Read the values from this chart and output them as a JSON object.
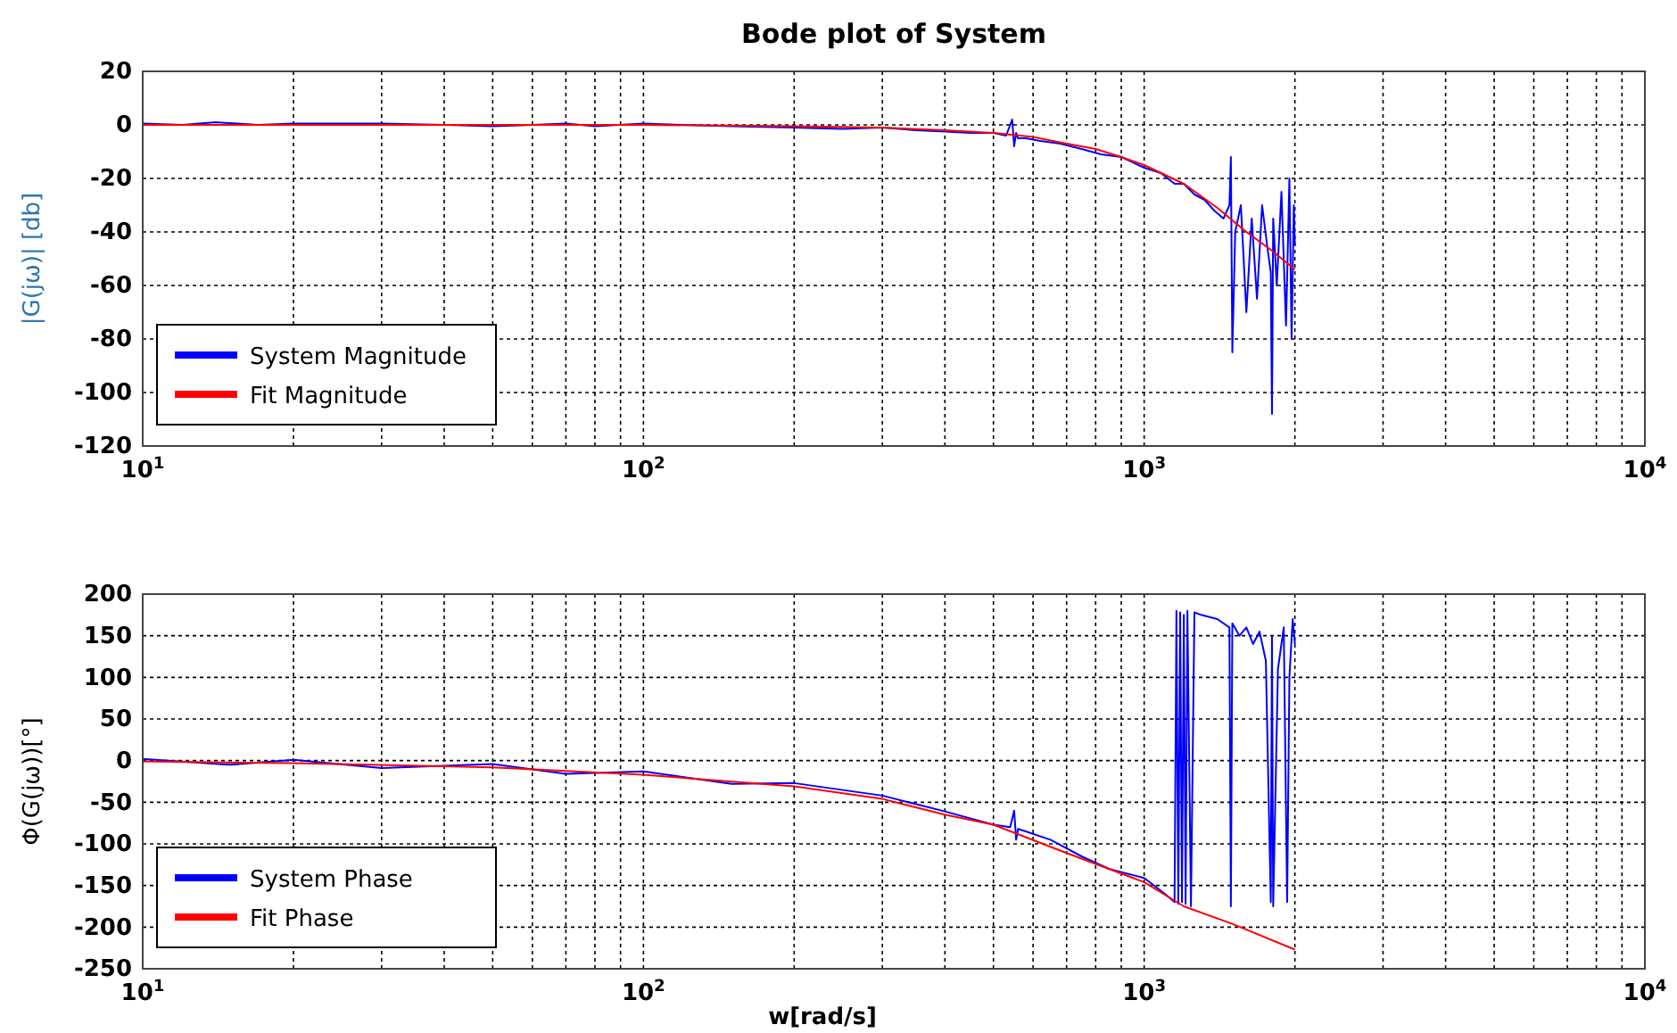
{
  "chart_data": [
    {
      "type": "line",
      "title": "Bode plot of System",
      "ylabel": "|G(jω)| [db]",
      "log": "x",
      "grid": true,
      "legend": "bottom left",
      "xlim": [
        10,
        10000
      ],
      "xticks": [
        {
          "value": 10,
          "label": "10$^{1}$"
        },
        {
          "value": 100,
          "label": "10$^{2}$"
        },
        {
          "value": 1000,
          "label": "10$^{3}$"
        },
        {
          "value": 10000,
          "label": "10$^{4}$"
        }
      ],
      "ylim": [
        -120,
        20
      ],
      "yticks": [
        -120,
        -100,
        -80,
        -60,
        -40,
        -20,
        0,
        20
      ],
      "series": [
        {
          "name": "System Magnitude",
          "color": "#0000ff",
          "x": [
            10,
            12,
            14,
            17,
            20,
            25,
            30,
            40,
            50,
            60,
            70,
            80,
            100,
            120,
            150,
            200,
            250,
            300,
            350,
            400,
            450,
            500,
            530,
            545,
            550,
            555,
            560,
            580,
            620,
            680,
            750,
            820,
            900,
            1000,
            1080,
            1150,
            1200,
            1260,
            1320,
            1380,
            1440,
            1480,
            1490,
            1500,
            1520,
            1560,
            1600,
            1640,
            1680,
            1720,
            1760,
            1790,
            1800,
            1810,
            1840,
            1880,
            1920,
            1950,
            1970,
            1990,
            2000
          ],
          "values": [
            0.5,
            0,
            1,
            0,
            0.5,
            0.5,
            0.5,
            0,
            -0.5,
            0,
            0.5,
            -0.5,
            0.5,
            0,
            -0.5,
            -1,
            -1.5,
            -1,
            -2,
            -2.5,
            -3,
            -3,
            -4,
            2,
            -8,
            -3,
            -5,
            -5,
            -6,
            -7,
            -9,
            -11,
            -12,
            -16,
            -18,
            -22,
            -22,
            -26,
            -28,
            -32,
            -35,
            -30,
            -12,
            -85,
            -40,
            -30,
            -70,
            -35,
            -65,
            -30,
            -45,
            -55,
            -108,
            -35,
            -60,
            -25,
            -75,
            -20,
            -80,
            -30,
            -45
          ]
        },
        {
          "name": "Fit Magnitude",
          "color": "#ff0000",
          "x": [
            10,
            20,
            50,
            100,
            200,
            300,
            400,
            500,
            600,
            700,
            800,
            900,
            1000,
            1200,
            1400,
            1600,
            1800,
            2000
          ],
          "values": [
            0,
            0,
            0,
            0,
            -0.5,
            -1,
            -2,
            -3,
            -4.5,
            -7,
            -9,
            -12,
            -15,
            -22,
            -31,
            -40,
            -47,
            -54
          ]
        }
      ]
    },
    {
      "type": "line",
      "xlabel": "w[rad/s]",
      "ylabel": "Φ(G(jω))[°]",
      "log": "x",
      "grid": true,
      "legend": "bottom left",
      "xlim": [
        10,
        10000
      ],
      "xticks": [
        {
          "value": 10,
          "label": "10$^{1}$"
        },
        {
          "value": 100,
          "label": "10$^{2}$"
        },
        {
          "value": 1000,
          "label": "10$^{3}$"
        },
        {
          "value": 10000,
          "label": "10$^{4}$"
        }
      ],
      "ylim": [
        -250,
        200
      ],
      "yticks": [
        -250,
        -200,
        -150,
        -100,
        -50,
        0,
        50,
        100,
        150,
        200
      ],
      "series": [
        {
          "name": "System Phase",
          "color": "#0000ff",
          "x": [
            10,
            15,
            20,
            30,
            50,
            70,
            100,
            150,
            200,
            300,
            400,
            500,
            540,
            550,
            555,
            560,
            580,
            650,
            750,
            850,
            1000,
            1100,
            1150,
            1160,
            1170,
            1180,
            1190,
            1200,
            1210,
            1220,
            1240,
            1260,
            1300,
            1400,
            1480,
            1490,
            1500,
            1550,
            1600,
            1650,
            1700,
            1750,
            1790,
            1800,
            1810,
            1850,
            1900,
            1930,
            1950,
            1980,
            2000
          ],
          "values": [
            2,
            -5,
            1,
            -9,
            -4,
            -16,
            -13,
            -28,
            -27,
            -42,
            -61,
            -77,
            -80,
            -60,
            -95,
            -82,
            -85,
            -95,
            -115,
            -130,
            -141,
            -160,
            -170,
            180,
            -172,
            178,
            -170,
            175,
            -172,
            180,
            -175,
            178,
            175,
            170,
            160,
            -175,
            165,
            150,
            160,
            140,
            155,
            120,
            -170,
            150,
            -175,
            110,
            160,
            -170,
            100,
            170,
            140
          ]
        },
        {
          "name": "Fit Phase",
          "color": "#ff0000",
          "x": [
            10,
            20,
            50,
            100,
            200,
            300,
            400,
            500,
            700,
            1000,
            1200,
            1500,
            2000
          ],
          "values": [
            -1,
            -3,
            -8,
            -17,
            -31,
            -46,
            -65,
            -77,
            -111,
            -146,
            -175,
            -196,
            -227
          ]
        }
      ]
    }
  ]
}
